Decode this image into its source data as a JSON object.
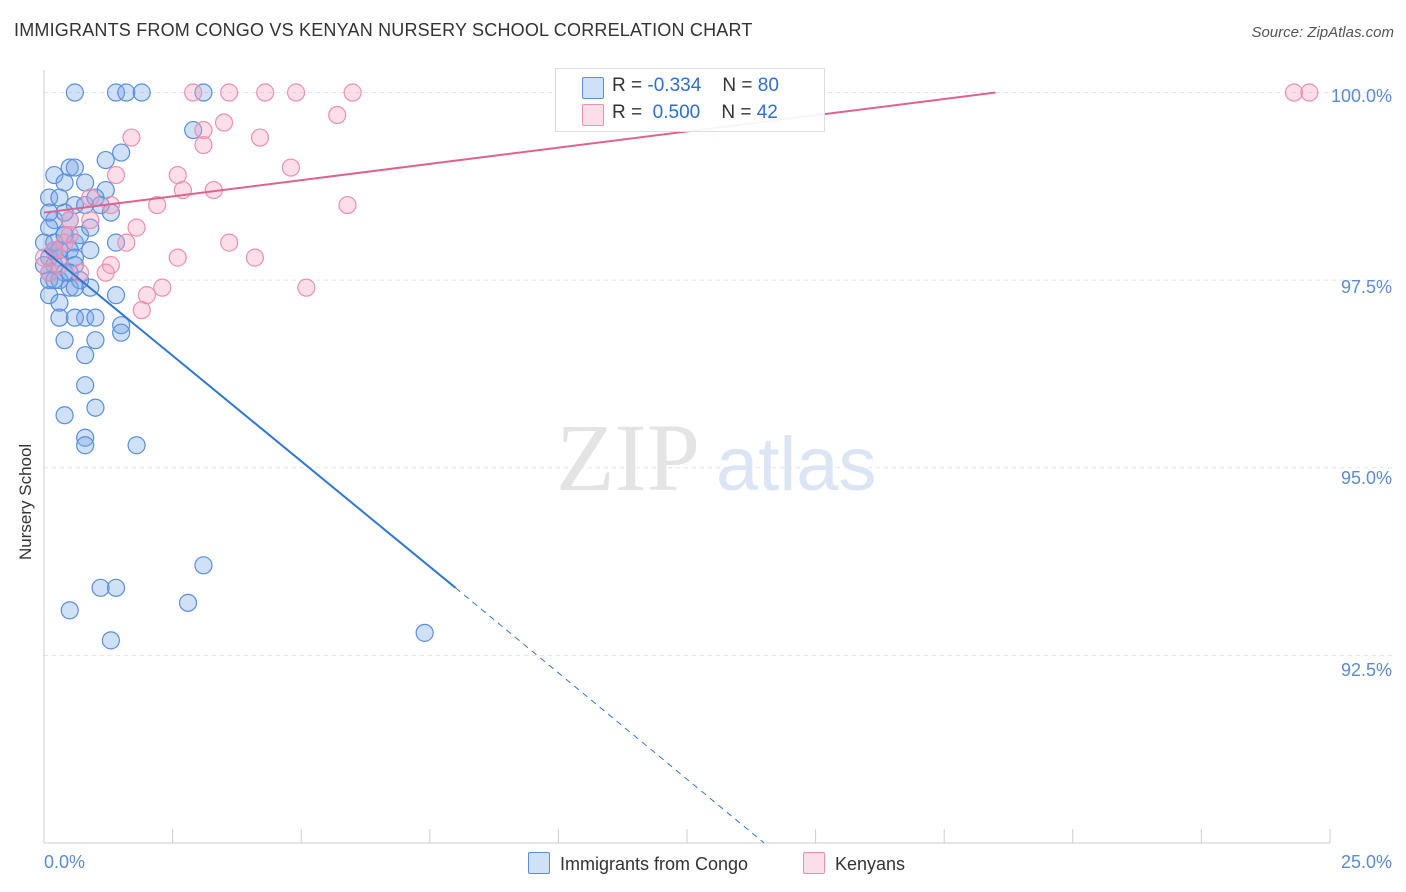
{
  "title": "IMMIGRANTS FROM CONGO VS KENYAN NURSERY SCHOOL CORRELATION CHART",
  "source": "Source: ZipAtlas.com",
  "watermark": {
    "zip": "ZIP",
    "atlas": "atlas"
  },
  "colors": {
    "blue_fill": "rgba(120,165,230,0.35)",
    "blue_stroke": "#5b8fdc",
    "blue_line": "#2f77d0",
    "pink_fill": "rgba(245,160,190,0.35)",
    "pink_stroke": "#ec8fb0",
    "pink_line": "#e0628f",
    "tick_text": "#5b8bd4",
    "grid": "#e3e3e3"
  },
  "legend_top": {
    "rows": [
      {
        "r_label": "R =",
        "r_value": "-0.334",
        "n_label": "N =",
        "n_value": "80"
      },
      {
        "r_label": "R =",
        "r_value": "0.500",
        "n_label": "N =",
        "n_value": "42"
      }
    ]
  },
  "legend_bottom": {
    "series1": "Immigrants from Congo",
    "series2": "Kenyans"
  },
  "chart_data": {
    "type": "scatter",
    "title": "IMMIGRANTS FROM CONGO VS KENYAN NURSERY SCHOOL CORRELATION CHART",
    "xlabel": "",
    "ylabel": "Nursery School",
    "xlim": [
      0,
      25
    ],
    "ylim": [
      90.0,
      100.3
    ],
    "y_ticks": [
      92.5,
      95.0,
      97.5,
      100.0
    ],
    "y_tick_labels": [
      "92.5%",
      "95.0%",
      "97.5%",
      "100.0%"
    ],
    "x_tick_labels": [
      "0.0%",
      "25.0%"
    ],
    "series": [
      {
        "name": "Immigrants from Congo",
        "r": -0.334,
        "n": 80,
        "trend": {
          "x0": 0.0,
          "y0": 97.9,
          "x1": 8.0,
          "y1": 93.4,
          "dash_to_x": 14.0,
          "dash_to_y": 90.0
        },
        "points": [
          [
            0.6,
            100.0
          ],
          [
            1.4,
            100.0
          ],
          [
            1.6,
            100.0
          ],
          [
            1.9,
            100.0
          ],
          [
            3.1,
            100.0
          ],
          [
            2.9,
            99.5
          ],
          [
            1.5,
            99.2
          ],
          [
            1.2,
            99.1
          ],
          [
            0.2,
            98.9
          ],
          [
            0.5,
            99.0
          ],
          [
            0.6,
            99.0
          ],
          [
            0.4,
            98.8
          ],
          [
            0.8,
            98.8
          ],
          [
            1.2,
            98.7
          ],
          [
            0.1,
            98.6
          ],
          [
            0.6,
            98.5
          ],
          [
            0.8,
            98.5
          ],
          [
            1.0,
            98.6
          ],
          [
            0.2,
            98.3
          ],
          [
            0.5,
            98.3
          ],
          [
            1.3,
            98.4
          ],
          [
            0.1,
            98.2
          ],
          [
            0.4,
            98.1
          ],
          [
            0.6,
            98.0
          ],
          [
            1.4,
            98.0
          ],
          [
            0.2,
            97.9
          ],
          [
            0.5,
            97.9
          ],
          [
            0.9,
            97.9
          ],
          [
            0.1,
            97.8
          ],
          [
            0.3,
            97.8
          ],
          [
            0.6,
            97.8
          ],
          [
            0.2,
            97.7
          ],
          [
            0.4,
            97.6
          ],
          [
            0.6,
            97.7
          ],
          [
            0.1,
            97.5
          ],
          [
            0.3,
            97.5
          ],
          [
            0.5,
            97.4
          ],
          [
            0.9,
            97.4
          ],
          [
            0.1,
            97.3
          ],
          [
            0.3,
            97.2
          ],
          [
            1.4,
            97.3
          ],
          [
            0.8,
            97.0
          ],
          [
            0.3,
            97.0
          ],
          [
            0.6,
            97.0
          ],
          [
            1.5,
            96.9
          ],
          [
            0.4,
            96.7
          ],
          [
            1.0,
            96.7
          ],
          [
            1.5,
            96.8
          ],
          [
            0.8,
            96.5
          ],
          [
            0.8,
            96.1
          ],
          [
            1.0,
            95.8
          ],
          [
            0.4,
            95.7
          ],
          [
            0.8,
            95.4
          ],
          [
            0.8,
            95.3
          ],
          [
            1.8,
            95.3
          ],
          [
            3.1,
            93.7
          ],
          [
            1.1,
            93.4
          ],
          [
            1.4,
            93.4
          ],
          [
            0.5,
            93.1
          ],
          [
            2.8,
            93.2
          ],
          [
            1.3,
            92.7
          ],
          [
            7.4,
            92.8
          ],
          [
            0.0,
            98.0
          ],
          [
            0.1,
            97.6
          ],
          [
            0.2,
            97.5
          ],
          [
            0.3,
            97.9
          ],
          [
            0.7,
            98.1
          ],
          [
            0.9,
            98.2
          ],
          [
            1.1,
            98.5
          ],
          [
            0.4,
            98.4
          ],
          [
            0.2,
            98.0
          ],
          [
            0.5,
            97.6
          ],
          [
            0.7,
            97.5
          ],
          [
            0.0,
            97.7
          ],
          [
            0.1,
            98.4
          ],
          [
            0.2,
            97.9
          ],
          [
            0.4,
            98.1
          ],
          [
            0.6,
            97.4
          ],
          [
            1.0,
            97.0
          ],
          [
            0.3,
            98.6
          ]
        ]
      },
      {
        "name": "Kenyans",
        "r": 0.5,
        "n": 42,
        "trend": {
          "x0": 0.0,
          "y0": 98.4,
          "x1": 18.5,
          "y1": 100.0
        },
        "points": [
          [
            2.9,
            100.0
          ],
          [
            3.6,
            100.0
          ],
          [
            4.3,
            100.0
          ],
          [
            4.9,
            100.0
          ],
          [
            6.0,
            100.0
          ],
          [
            24.3,
            100.0
          ],
          [
            24.6,
            100.0
          ],
          [
            5.7,
            99.7
          ],
          [
            3.1,
            99.5
          ],
          [
            3.5,
            99.6
          ],
          [
            4.2,
            99.4
          ],
          [
            1.7,
            99.4
          ],
          [
            3.1,
            99.3
          ],
          [
            4.8,
            99.0
          ],
          [
            1.4,
            98.9
          ],
          [
            2.6,
            98.9
          ],
          [
            2.7,
            98.7
          ],
          [
            3.3,
            98.7
          ],
          [
            0.9,
            98.6
          ],
          [
            1.3,
            98.5
          ],
          [
            2.2,
            98.5
          ],
          [
            5.9,
            98.5
          ],
          [
            0.9,
            98.3
          ],
          [
            1.8,
            98.2
          ],
          [
            0.5,
            98.3
          ],
          [
            3.6,
            98.0
          ],
          [
            1.6,
            98.0
          ],
          [
            0.5,
            98.1
          ],
          [
            0.2,
            97.9
          ],
          [
            0.4,
            98.0
          ],
          [
            0.0,
            97.8
          ],
          [
            2.6,
            97.8
          ],
          [
            4.1,
            97.8
          ],
          [
            1.3,
            97.7
          ],
          [
            0.1,
            97.6
          ],
          [
            1.2,
            97.6
          ],
          [
            0.7,
            97.6
          ],
          [
            2.3,
            97.4
          ],
          [
            2.0,
            97.3
          ],
          [
            5.1,
            97.4
          ],
          [
            1.9,
            97.1
          ],
          [
            0.3,
            97.7
          ]
        ]
      }
    ]
  }
}
